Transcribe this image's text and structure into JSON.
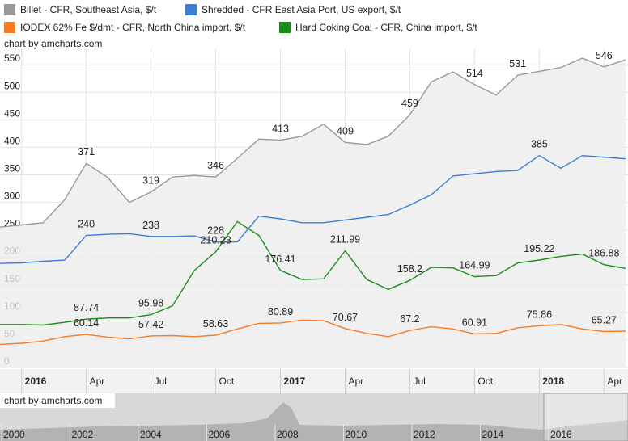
{
  "chart_data": {
    "type": "line",
    "credit": "chart by amcharts.com",
    "x": [
      "2015-12",
      "2016-01",
      "2016-02",
      "2016-03",
      "2016-04",
      "2016-05",
      "2016-06",
      "2016-07",
      "2016-08",
      "2016-09",
      "2016-10",
      "2016-11",
      "2016-12",
      "2017-01",
      "2017-02",
      "2017-03",
      "2017-04",
      "2017-05",
      "2017-06",
      "2017-07",
      "2017-08",
      "2017-09",
      "2017-10",
      "2017-11",
      "2017-12",
      "2018-01",
      "2018-02",
      "2018-03",
      "2018-04",
      "2018-05"
    ],
    "xlim": [
      "2015-12",
      "2018-05"
    ],
    "xticks": [
      {
        "value": "2016-01",
        "label": "2016"
      },
      {
        "value": "2016-04",
        "label": "Apr"
      },
      {
        "value": "2016-07",
        "label": "Jul"
      },
      {
        "value": "2016-10",
        "label": "Oct"
      },
      {
        "value": "2017-01",
        "label": "2017"
      },
      {
        "value": "2017-04",
        "label": "Apr"
      },
      {
        "value": "2017-07",
        "label": "Jul"
      },
      {
        "value": "2017-10",
        "label": "Oct"
      },
      {
        "value": "2018-01",
        "label": "2018"
      },
      {
        "value": "2018-04",
        "label": "Apr"
      }
    ],
    "ylim": [
      0,
      565
    ],
    "yticks": [
      0,
      50,
      100,
      150,
      200,
      250,
      300,
      350,
      400,
      450,
      500,
      550
    ],
    "grid": true,
    "series": [
      {
        "name": "Billet - CFR, Southeast Asia, $/t",
        "color": "#999999",
        "fill": true,
        "values": [
          255,
          259,
          263,
          305,
          371,
          345,
          300,
          319,
          346,
          349,
          346,
          380,
          415,
          413,
          420,
          442,
          409,
          405,
          420,
          459,
          519,
          537,
          514,
          495,
          531,
          538,
          545,
          562,
          546,
          559
        ],
        "value_labels": [
          null,
          null,
          null,
          null,
          "371",
          null,
          null,
          "319",
          null,
          null,
          "346",
          null,
          null,
          "413",
          null,
          null,
          "409",
          null,
          null,
          "459",
          null,
          null,
          "514",
          null,
          "531",
          null,
          null,
          null,
          "546",
          null
        ]
      },
      {
        "name": "Shredded - CFR East Asia Port, US export, $/t",
        "color": "#3a7fd5",
        "values": [
          189,
          190,
          193,
          195,
          240,
          242,
          243,
          238,
          238,
          239,
          228,
          228,
          275,
          270,
          263,
          263,
          268,
          273,
          278,
          295,
          314,
          348,
          352,
          356,
          358,
          385,
          362,
          385,
          382,
          379
        ],
        "value_labels": [
          null,
          null,
          null,
          null,
          "240",
          null,
          null,
          "238",
          null,
          null,
          "228",
          null,
          null,
          null,
          null,
          null,
          null,
          null,
          null,
          null,
          null,
          null,
          null,
          null,
          null,
          "385",
          null,
          null,
          null,
          null
        ]
      },
      {
        "name": "IODEX 62% Fe $/dmt - CFR, North China import, $/t",
        "color": "#f77b22",
        "values": [
          42,
          44,
          48,
          56,
          60.14,
          55,
          52,
          57.42,
          58,
          56,
          58.63,
          70,
          80,
          80.89,
          86,
          85,
          70.67,
          62,
          56,
          67.2,
          74,
          70,
          60.91,
          62,
          72,
          75.86,
          78,
          70,
          65.27,
          66
        ],
        "value_labels": [
          null,
          null,
          null,
          null,
          "60.14",
          null,
          null,
          "57.42",
          null,
          null,
          "58.63",
          null,
          null,
          "80.89",
          null,
          null,
          "70.67",
          null,
          null,
          "67.2",
          null,
          null,
          "60.91",
          null,
          null,
          "75.86",
          null,
          null,
          "65.27",
          null
        ]
      },
      {
        "name": "Hard Coking Coal - CFR, China import, $/t",
        "color": "#1a8c1a",
        "values": [
          78,
          78,
          77,
          82,
          87.74,
          90,
          90,
          95.98,
          112,
          176,
          210.23,
          265,
          240,
          176.41,
          160,
          161,
          211.99,
          160,
          142,
          158.2,
          182,
          181,
          164.99,
          167,
          190,
          195.22,
          202,
          206,
          186.88,
          180
        ],
        "value_labels": [
          null,
          null,
          null,
          null,
          "87.74",
          null,
          null,
          "95.98",
          null,
          null,
          "210.23",
          null,
          null,
          "176.41",
          null,
          null,
          "211.99",
          null,
          null,
          "158.2",
          null,
          null,
          "164.99",
          null,
          null,
          "195.22",
          null,
          null,
          "186.88",
          null
        ]
      }
    ],
    "scrollbar_labels": [
      "2000",
      "2002",
      "2004",
      "2006",
      "2008",
      "2010",
      "2012",
      "2014",
      "2016"
    ]
  }
}
